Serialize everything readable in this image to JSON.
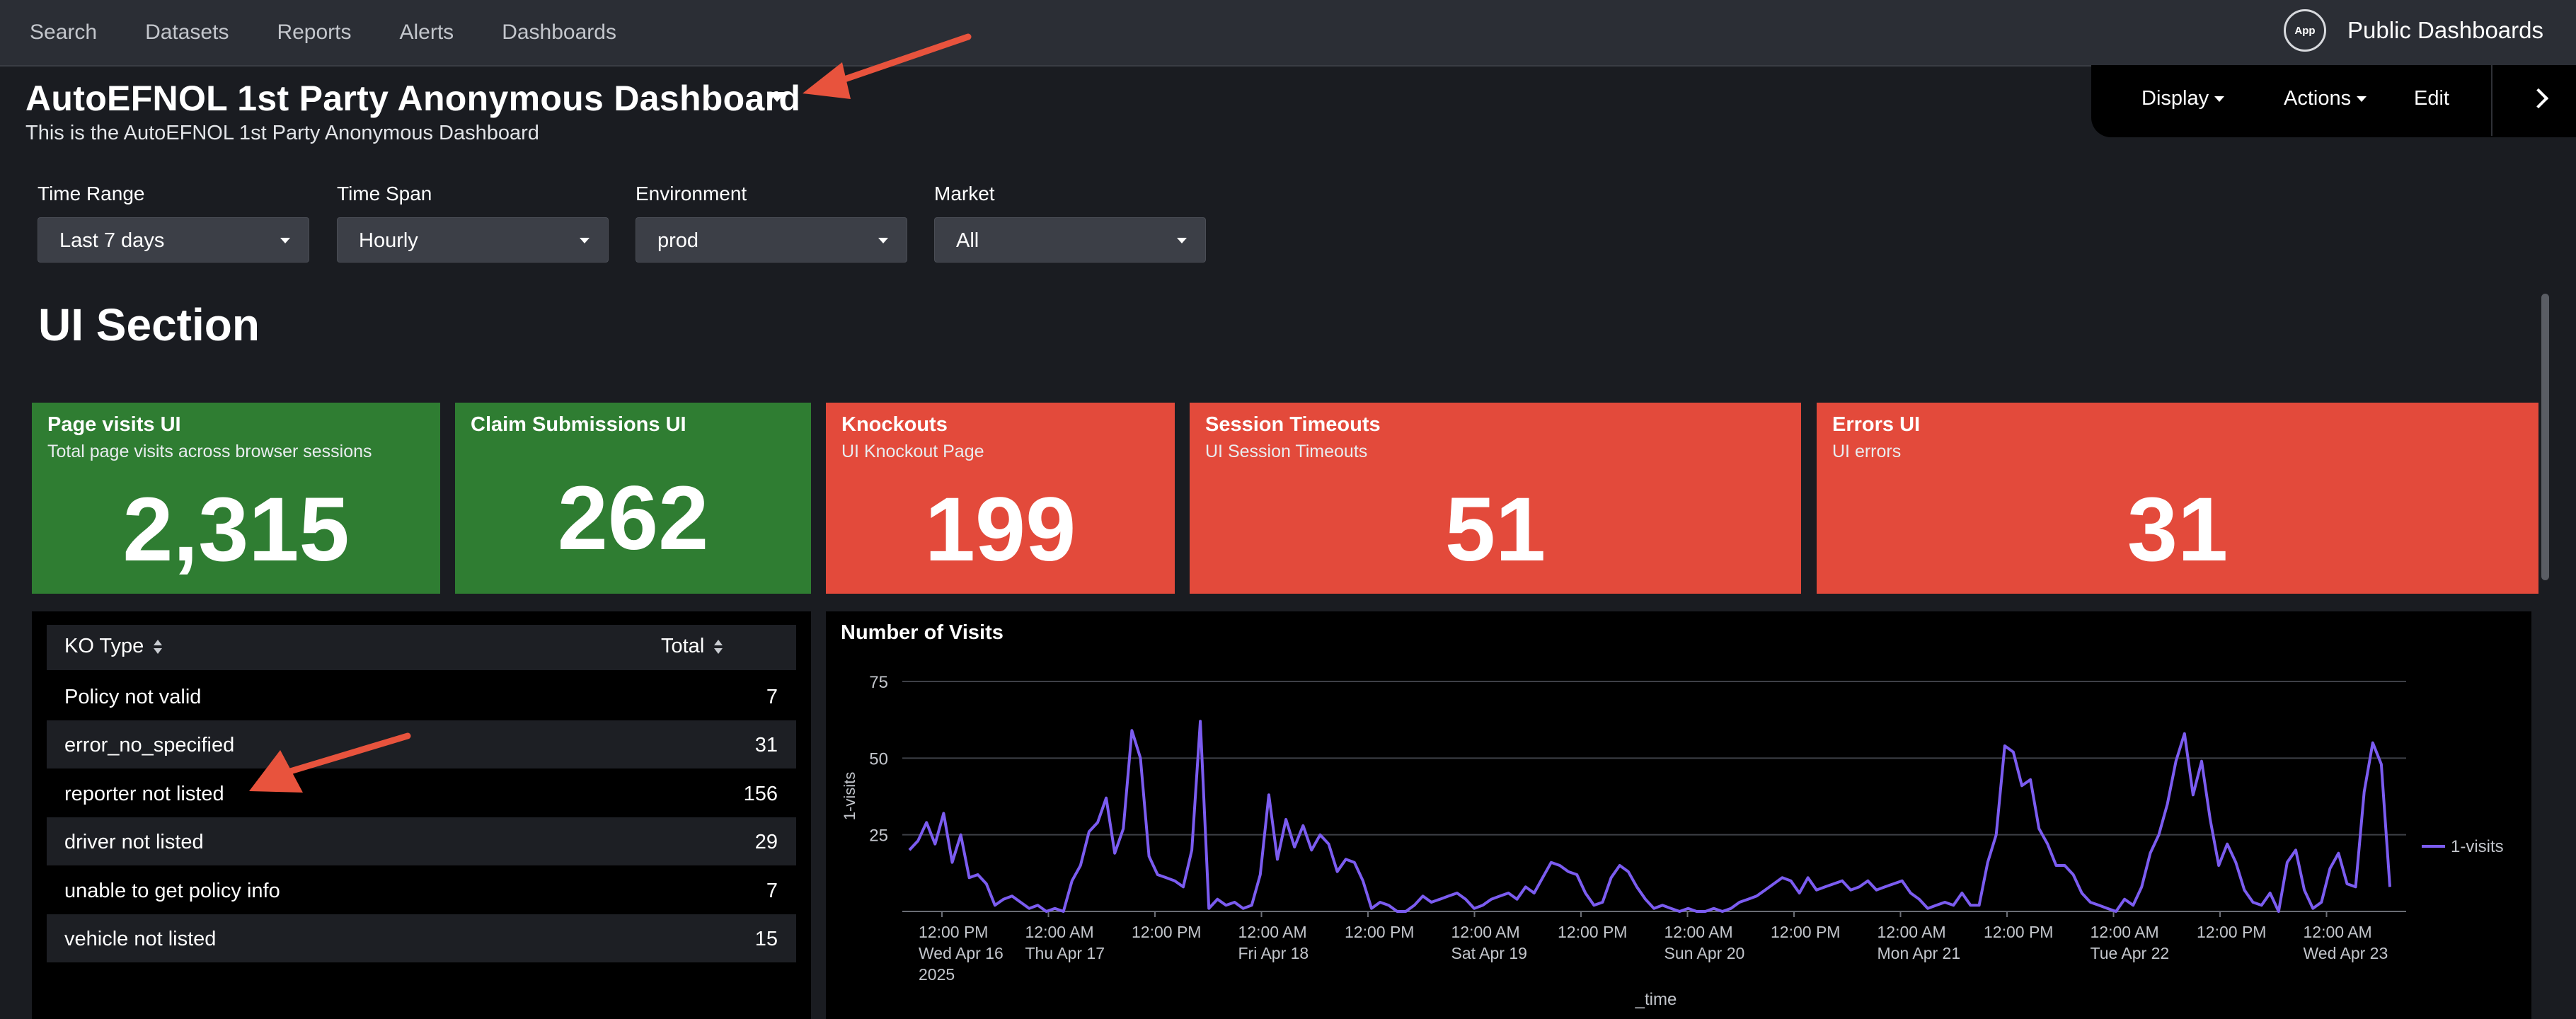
{
  "topnav": {
    "items": [
      "Search",
      "Datasets",
      "Reports",
      "Alerts",
      "Dashboards"
    ],
    "app_icon_label": "App",
    "app_name": "Public Dashboards"
  },
  "dashboard": {
    "title": "AutoEFNOL 1st Party Anonymous Dashboard",
    "description": "This is the AutoEFNOL 1st Party Anonymous Dashboard"
  },
  "actions": {
    "display": "Display",
    "actions": "Actions",
    "edit": "Edit"
  },
  "inputs": [
    {
      "label": "Time Range",
      "value": "Last 7 days"
    },
    {
      "label": "Time Span",
      "value": "Hourly"
    },
    {
      "label": "Environment",
      "value": "prod"
    },
    {
      "label": "Market",
      "value": "All"
    }
  ],
  "section_title": "UI Section",
  "tiles": [
    {
      "title": "Page visits UI",
      "subtitle": "Total page visits across browser sessions",
      "value": "2,315",
      "color": "#2f7d32"
    },
    {
      "title": "Claim Submissions UI",
      "subtitle": "",
      "value": "262",
      "color": "#2f7d32"
    },
    {
      "title": "Knockouts",
      "subtitle": "UI Knockout Page",
      "value": "199",
      "color": "#e34a3b"
    },
    {
      "title": "Session Timeouts",
      "subtitle": "UI Session Timeouts",
      "value": "51",
      "color": "#e34a3b"
    },
    {
      "title": "Errors UI",
      "subtitle": "UI errors",
      "value": "31",
      "color": "#e34a3b"
    }
  ],
  "ko_table": {
    "columns": [
      "KO Type",
      "Total"
    ],
    "rows": [
      {
        "type": "Policy not valid",
        "total": "7"
      },
      {
        "type": "error_no_specified",
        "total": "31"
      },
      {
        "type": "reporter not listed",
        "total": "156"
      },
      {
        "type": "driver not listed",
        "total": "29"
      },
      {
        "type": "unable to get policy info",
        "total": "7"
      },
      {
        "type": "vehicle not listed",
        "total": "15"
      }
    ]
  },
  "chart_data": {
    "type": "line",
    "title": "Number of Visits",
    "xlabel": "_time",
    "ylabel": "1-visits",
    "ylim": [
      0,
      75
    ],
    "yticks": [
      25,
      50,
      75
    ],
    "grid": true,
    "legend_position": "right",
    "series_color": "#7b5cf0",
    "x_ticks": [
      [
        "12:00 PM",
        "Wed Apr 16",
        "2025"
      ],
      [
        "12:00 AM",
        "Thu Apr 17",
        ""
      ],
      [
        "12:00 PM",
        "",
        ""
      ],
      [
        "12:00 AM",
        "Fri Apr 18",
        ""
      ],
      [
        "12:00 PM",
        "",
        ""
      ],
      [
        "12:00 AM",
        "Sat Apr 19",
        ""
      ],
      [
        "12:00 PM",
        "",
        ""
      ],
      [
        "12:00 AM",
        "Sun Apr 20",
        ""
      ],
      [
        "12:00 PM",
        "",
        ""
      ],
      [
        "12:00 AM",
        "Mon Apr 21",
        ""
      ],
      [
        "12:00 PM",
        "",
        ""
      ],
      [
        "12:00 AM",
        "Tue Apr 22",
        ""
      ],
      [
        "12:00 PM",
        "",
        ""
      ],
      [
        "12:00 AM",
        "Wed Apr 23",
        ""
      ]
    ],
    "series": [
      {
        "name": "1-visits",
        "values": [
          20,
          23,
          29,
          22,
          32,
          16,
          25,
          11,
          12,
          9,
          2,
          4,
          5,
          3,
          1,
          2,
          0,
          1,
          0,
          10,
          15,
          26,
          29,
          37,
          19,
          27,
          59,
          50,
          18,
          12,
          11,
          10,
          8,
          20,
          62,
          1,
          4,
          2,
          3,
          1,
          2,
          12,
          38,
          17,
          30,
          21,
          28,
          20,
          25,
          22,
          13,
          17,
          16,
          10,
          1,
          3,
          2,
          0,
          0,
          2,
          5,
          3,
          4,
          5,
          6,
          4,
          1,
          2,
          4,
          5,
          6,
          4,
          8,
          6,
          11,
          16,
          15,
          13,
          12,
          6,
          2,
          3,
          11,
          15,
          13,
          8,
          4,
          1,
          2,
          1,
          0,
          1,
          0,
          0,
          1,
          0,
          1,
          3,
          4,
          5,
          7,
          9,
          11,
          10,
          6,
          11,
          7,
          8,
          9,
          10,
          7,
          8,
          10,
          7,
          8,
          9,
          10,
          6,
          4,
          1,
          2,
          3,
          2,
          6,
          2,
          2,
          16,
          25,
          54,
          52,
          41,
          43,
          27,
          22,
          15,
          15,
          12,
          6,
          3,
          2,
          1,
          0,
          4,
          2,
          8,
          19,
          25,
          35,
          49,
          58,
          38,
          49,
          30,
          15,
          22,
          16,
          7,
          3,
          2,
          6,
          0,
          16,
          20,
          7,
          1,
          3,
          14,
          19,
          9,
          8,
          39,
          55,
          48,
          8
        ]
      }
    ]
  }
}
